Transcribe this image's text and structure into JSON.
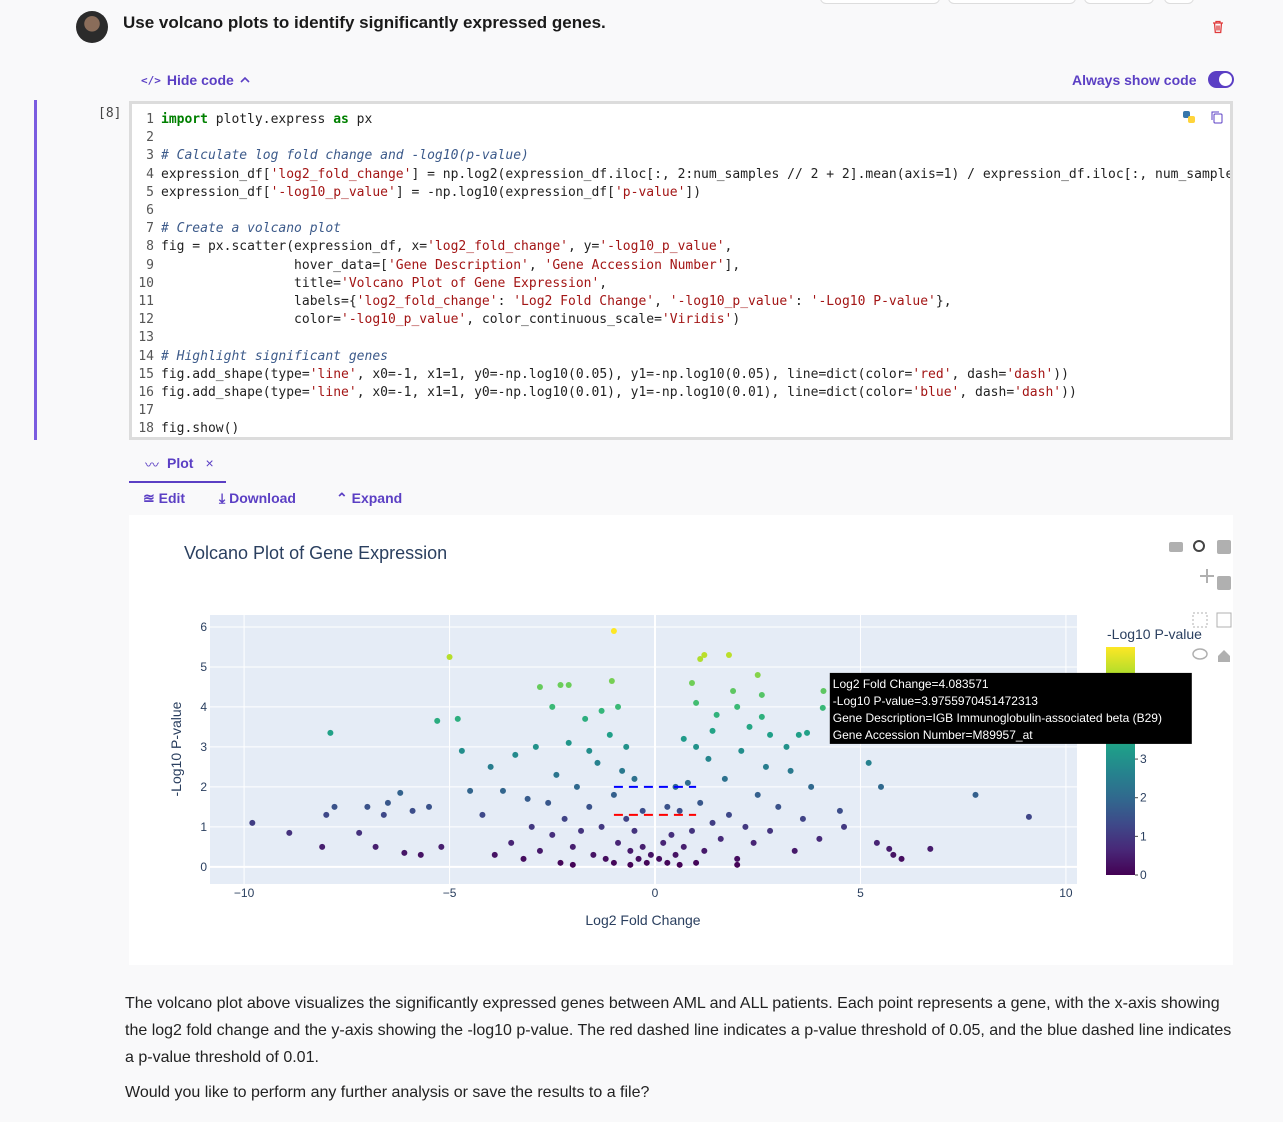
{
  "message": {
    "text": "Use volcano plots to identify significantly expressed genes."
  },
  "toolbar": {
    "hide_code": "Hide code",
    "always_show_code": "Always show code"
  },
  "cell": {
    "label": "[8]",
    "code_lines": [
      {
        "number": 1,
        "text": "import plotly.express as px"
      },
      {
        "number": 2
      },
      {
        "number": 3,
        "text": "# Calculate log fold change and -log10(p-value)"
      },
      {
        "number": 4,
        "text": "expression_df['log2_fold_change'] = np.log2(expression_df.iloc[:, 2:num_samples // 2 + 2].mean(axis=1) / expression_df.iloc[:, num_sample"
      },
      {
        "number": 5,
        "text": "expression_df['-log10_p_value'] = -np.log10(expression_df['p-value'])"
      },
      {
        "number": 6
      },
      {
        "number": 7,
        "text": "# Create a volcano plot"
      },
      {
        "number": 8,
        "text": "fig = px.scatter(expression_df, x='log2_fold_change', y='-log10_p_value',"
      },
      {
        "number": 9,
        "text": "                 hover_data=['Gene Description', 'Gene Accession Number'],"
      },
      {
        "number": 10,
        "text": "                 title='Volcano Plot of Gene Expression',"
      },
      {
        "number": 11,
        "text": "                 labels={'log2_fold_change': 'Log2 Fold Change', '-log10_p_value': '-Log10 P-value'},"
      },
      {
        "number": 12,
        "text": "                 color='-log10_p_value', color_continuous_scale='Viridis')"
      },
      {
        "number": 13
      },
      {
        "number": 14,
        "text": "# Highlight significant genes"
      },
      {
        "number": 15,
        "text": "fig.add_shape(type='line', x0=-1, x1=1, y0=-np.log10(0.05), y1=-np.log10(0.05), line=dict(color='red', dash='dash'))"
      },
      {
        "number": 16,
        "text": "fig.add_shape(type='line', x0=-1, x1=1, y0=-np.log10(0.01), y1=-np.log10(0.01), line=dict(color='blue', dash='dash'))"
      },
      {
        "number": 17
      },
      {
        "number": 18,
        "text": "fig.show()"
      }
    ]
  },
  "output_tabs": {
    "plot": "Plot",
    "edit": "Edit",
    "download": "Download",
    "expand": "Expand"
  },
  "chart_data": {
    "type": "scatter",
    "title": "Volcano Plot of Gene Expression",
    "x_label": "Log2 Fold Change",
    "y_label": "-Log10 P-value",
    "colorbar_title": "-Log10 P-value",
    "colorscale": [
      "#440154",
      "#482878",
      "#3e4989",
      "#31688e",
      "#26828e",
      "#1f9e89",
      "#35b779",
      "#6ece58",
      "#b5de2b",
      "#fde725"
    ],
    "clim": [
      0,
      5.9
    ],
    "cticks": [
      0,
      1,
      2,
      3
    ],
    "xlim": [
      -10.83,
      10.27
    ],
    "ylim": [
      -0.43,
      6.3
    ],
    "xticks": [
      {
        "value": -10,
        "label": "−10"
      },
      {
        "value": -5,
        "label": "−5"
      },
      0,
      5,
      10
    ],
    "yticks": [
      0,
      1,
      2,
      3,
      4,
      5,
      6
    ],
    "grid": true,
    "plot_bg": "#e5ecf6",
    "x": [
      -9.8,
      -8.9,
      -8.1,
      -8.0,
      -7.9,
      -7.8,
      -7.2,
      -7.0,
      -6.8,
      -6.6,
      -6.5,
      -6.2,
      -6.1,
      -5.9,
      -5.7,
      -5.5,
      -5.3,
      -5.2,
      -5.0,
      -4.8,
      -4.7,
      -4.5,
      -2.8,
      -2.3,
      -2.1,
      -1.0,
      -1.05,
      1.1,
      1.2,
      1.8,
      2.5,
      2.6,
      2.6,
      3.5,
      3.7,
      4.1,
      4.5,
      4.6,
      5.2,
      5.5,
      5.4,
      6.0,
      6.7,
      7.8,
      9.1,
      5.7,
      5.8,
      -3.9,
      -3.5,
      -3.2,
      -3.0,
      -2.8,
      -2.6,
      -2.5,
      -2.4,
      -2.3,
      -2.2,
      -2.1,
      -2.0,
      -1.9,
      -1.8,
      -1.7,
      -1.6,
      -1.5,
      -1.4,
      -1.3,
      -1.2,
      -1.1,
      -1.0,
      -0.9,
      -0.8,
      -0.7,
      -0.6,
      -0.5,
      -0.4,
      -0.3,
      -0.2,
      -0.1,
      0.1,
      0.2,
      0.3,
      0.4,
      0.5,
      0.6,
      0.7,
      0.8,
      0.9,
      1.0,
      1.1,
      1.2,
      1.3,
      1.4,
      1.5,
      1.6,
      1.7,
      1.8,
      1.9,
      2.0,
      2.1,
      2.2,
      2.3,
      2.4,
      2.5,
      2.7,
      2.8,
      3.0,
      3.2,
      3.4,
      3.6,
      3.8,
      4.0,
      -4.2,
      -4.0,
      -3.7,
      -3.4,
      -3.1,
      -2.9,
      0.9,
      1.0,
      -0.9,
      -1.3,
      -2.5,
      2.0,
      1.4,
      -0.5,
      0.5,
      -1.6,
      2.8,
      3.3,
      -0.7,
      0.7,
      -0.3,
      0.3,
      -1.0,
      1.0,
      -2.0,
      2.0,
      -0.6,
      0.6,
      4.083571
    ],
    "values": [
      1.1,
      0.85,
      0.5,
      1.3,
      3.35,
      1.5,
      0.85,
      1.5,
      0.5,
      1.3,
      1.6,
      1.85,
      0.35,
      1.4,
      0.3,
      1.5,
      3.65,
      0.5,
      5.25,
      3.7,
      2.9,
      1.9,
      4.5,
      4.55,
      4.55,
      5.9,
      4.65,
      5.2,
      5.3,
      5.3,
      4.8,
      4.3,
      3.75,
      3.3,
      3.35,
      4.4,
      1.4,
      1.0,
      2.6,
      2.0,
      0.6,
      0.2,
      0.45,
      1.8,
      1.25,
      0.45,
      0.3,
      0.3,
      0.6,
      0.2,
      1.0,
      0.4,
      1.6,
      0.8,
      2.3,
      0.1,
      1.2,
      3.1,
      0.5,
      2.0,
      0.9,
      3.7,
      1.5,
      0.3,
      2.6,
      1.0,
      0.2,
      3.3,
      1.8,
      0.6,
      2.4,
      1.2,
      0.4,
      0.9,
      0.2,
      0.5,
      0.1,
      0.3,
      0.2,
      0.6,
      0.1,
      0.8,
      0.3,
      1.4,
      0.5,
      2.1,
      0.9,
      3.0,
      1.6,
      0.4,
      2.7,
      1.1,
      3.8,
      0.7,
      2.2,
      1.3,
      4.4,
      0.2,
      2.9,
      1.0,
      3.5,
      0.6,
      1.8,
      2.5,
      0.9,
      1.5,
      3.0,
      0.4,
      1.2,
      2.0,
      0.7,
      1.3,
      2.5,
      1.9,
      2.8,
      1.7,
      3.0,
      4.6,
      4.1,
      4.0,
      3.9,
      4.0,
      4.0,
      3.4,
      2.2,
      2.0,
      2.9,
      3.3,
      2.4,
      3.0,
      3.2,
      1.4,
      1.5,
      0.1,
      0.1,
      0.05,
      0.05,
      0.05,
      0.05,
      3.9755970451472313
    ],
    "shapes": [
      {
        "x0": -1,
        "x1": 1,
        "y0": 1.3,
        "y1": 1.3,
        "color": "red"
      },
      {
        "x0": -1,
        "x1": 1,
        "y0": 2,
        "y1": 2,
        "color": "blue"
      }
    ]
  },
  "tooltip": {
    "lines": [
      "Log2 Fold Change=4.083571",
      "-Log10 P-value=3.9755970451472313",
      "Gene Description=IGB Immunoglobulin-associated beta (B29)",
      "Gene Accession Number=M89957_at"
    ]
  },
  "response": {
    "paragraphs": [
      "The volcano plot above visualizes the significantly expressed genes between AML and ALL patients. Each point represents a gene, with the x-axis showing the log2 fold change and the y-axis showing the -log10 p-value. The red dashed line indicates a p-value threshold of 0.05, and the blue dashed line indicates a p-value threshold of 0.01.",
      "Would you like to perform any further analysis or save the results to a file?"
    ]
  }
}
